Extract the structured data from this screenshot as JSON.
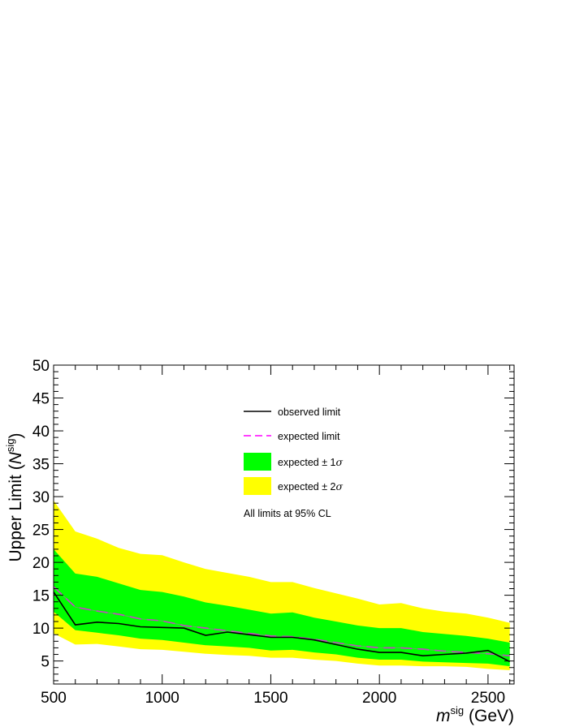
{
  "chart_data": {
    "type": "line",
    "xlabel": {
      "italic": "m",
      "sup": "sig",
      "rest": " (GeV)"
    },
    "ylabel": {
      "pre": "Upper Limit (",
      "italic": "N",
      "sup": "sig",
      "post": ")"
    },
    "xlim": [
      500,
      2620
    ],
    "ylim": [
      1.5,
      50
    ],
    "x_ticks": [
      500,
      1000,
      1500,
      2000,
      2500
    ],
    "y_ticks": [
      5,
      10,
      15,
      20,
      25,
      30,
      35,
      40,
      45,
      50
    ],
    "grid": false,
    "legend_position": "top-center",
    "x": [
      500,
      600,
      700,
      800,
      900,
      1000,
      1100,
      1200,
      1300,
      1400,
      1500,
      1600,
      1700,
      1800,
      1900,
      2000,
      2100,
      2200,
      2300,
      2400,
      2500,
      2600
    ],
    "series": [
      {
        "name": "observed limit",
        "key": "observed",
        "color": "#000000",
        "values": [
          15.5,
          10.5,
          10.9,
          10.7,
          10.2,
          10.1,
          10.0,
          8.9,
          9.4,
          9.0,
          8.6,
          8.6,
          8.2,
          7.5,
          6.8,
          6.3,
          6.3,
          5.8,
          6.0,
          6.2,
          6.6,
          4.9
        ]
      },
      {
        "name": "expected limit",
        "key": "expected",
        "color": "#ff00ff",
        "values": [
          16.3,
          13.2,
          12.6,
          12.1,
          11.4,
          11.1,
          10.4,
          10.0,
          9.6,
          9.2,
          8.8,
          8.7,
          8.3,
          7.8,
          7.3,
          7.0,
          7.0,
          6.8,
          6.5,
          6.3,
          6.1,
          5.8
        ]
      },
      {
        "name": "expected ± 1σ",
        "key": "band1",
        "color": "#00ff00",
        "lower": [
          12.5,
          9.7,
          9.3,
          8.9,
          8.4,
          8.2,
          7.8,
          7.4,
          7.2,
          7.0,
          6.6,
          6.7,
          6.3,
          6.0,
          5.5,
          5.2,
          5.2,
          4.9,
          4.8,
          4.7,
          4.6,
          4.2
        ],
        "upper": [
          22.0,
          18.3,
          17.8,
          16.8,
          15.8,
          15.5,
          14.8,
          13.9,
          13.4,
          12.8,
          12.2,
          12.4,
          11.6,
          11.0,
          10.4,
          10.0,
          10.0,
          9.4,
          9.1,
          8.8,
          8.4,
          7.8
        ]
      },
      {
        "name": "expected ± 2σ",
        "key": "band2",
        "color": "#ffff00",
        "lower": [
          9.2,
          7.5,
          7.6,
          7.2,
          6.8,
          6.7,
          6.4,
          6.1,
          5.9,
          5.8,
          5.5,
          5.5,
          5.2,
          5.0,
          4.6,
          4.3,
          4.3,
          4.2,
          4.2,
          4.1,
          3.8,
          3.6
        ],
        "upper": [
          29.4,
          24.7,
          23.6,
          22.2,
          21.3,
          21.1,
          20.0,
          19.0,
          18.4,
          17.8,
          17.0,
          17.0,
          16.1,
          15.3,
          14.5,
          13.6,
          13.8,
          13.0,
          12.5,
          12.2,
          11.6,
          10.8
        ]
      }
    ],
    "legend": [
      {
        "key": "observed",
        "label": "observed limit"
      },
      {
        "key": "expected",
        "label": "expected limit"
      },
      {
        "key": "band1",
        "label_pre": "expected ± 1",
        "label_sym": "σ"
      },
      {
        "key": "band2",
        "label_pre": "expected ± 2",
        "label_sym": "σ"
      }
    ],
    "annotation": "All limits at 95% CL"
  }
}
